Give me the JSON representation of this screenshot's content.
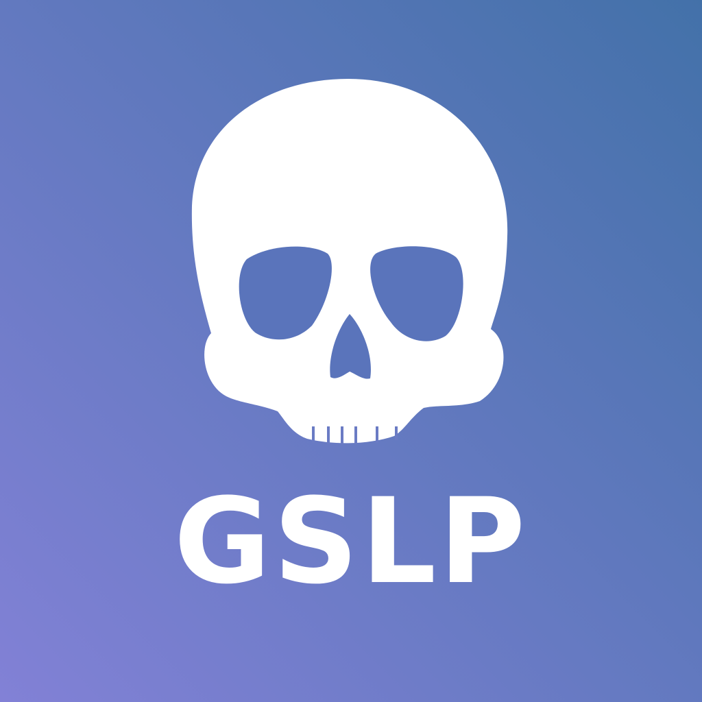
{
  "logo": {
    "icon": "skull-icon",
    "wordmark": "GSLP"
  },
  "colors": {
    "gradient_top_right": "#4371A9",
    "gradient_bottom_left": "#8281D6",
    "foreground": "#FFFFFF"
  }
}
